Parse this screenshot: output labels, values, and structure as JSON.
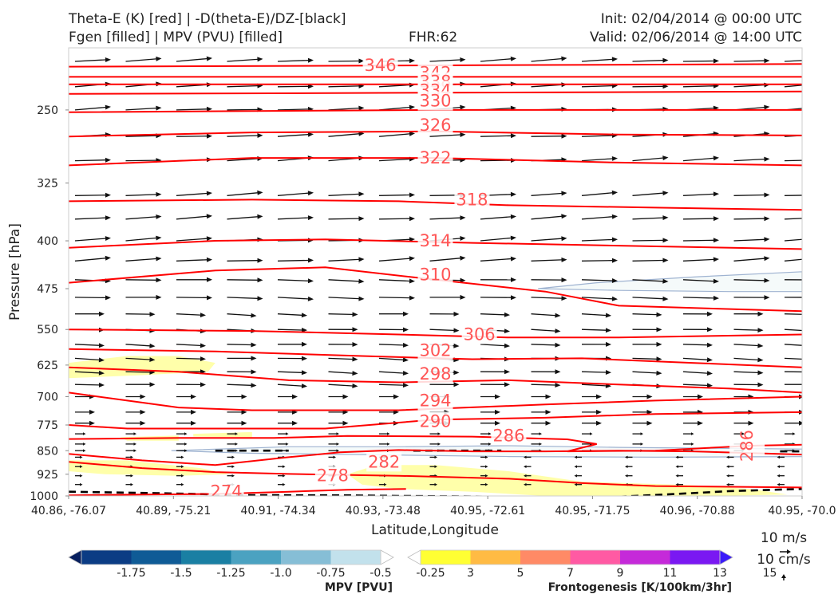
{
  "header": {
    "title_line1": "Theta-E (K) [red] | -D(theta-E)/DZ-[black]",
    "title_line2": "Fgen [filled] | MPV (PVU) [filled]",
    "fhr": "FHR:62",
    "init": "Init: 02/04/2014 @ 00:00 UTC",
    "valid": "Valid: 02/06/2014 @ 14:00 UTC"
  },
  "chart_data": {
    "type": "cross-section",
    "xlabel": "Latitude,Longitude",
    "ylabel": "Pressure [hPa]",
    "x_ticks": [
      "40.86, -76.07",
      "40.89, -75.21",
      "40.91, -74.34",
      "40.93, -73.48",
      "40.95, -72.61",
      "40.95, -71.75",
      "40.96, -70.88",
      "40.95, -70.0"
    ],
    "y_ticks": [
      250,
      325,
      400,
      475,
      550,
      625,
      700,
      775,
      850,
      925,
      1000
    ],
    "ylim": [
      1000,
      200
    ],
    "y_scale": "log",
    "theta_e_contours": [
      {
        "level": "274",
        "label": "274",
        "points": [
          [
            0,
            998
          ],
          [
            10,
            995
          ],
          [
            20,
            993
          ],
          [
            30,
            985
          ],
          [
            38,
            978
          ],
          [
            46,
            975
          ]
        ]
      },
      {
        "level": "278",
        "label": "278",
        "points": [
          [
            0,
            885
          ],
          [
            10,
            905
          ],
          [
            20,
            918
          ],
          [
            30,
            924
          ],
          [
            45,
            930
          ],
          [
            60,
            940
          ],
          [
            70,
            955
          ],
          [
            80,
            965
          ],
          [
            100,
            970
          ]
        ]
      },
      {
        "level": "282",
        "label": "282",
        "points": [
          [
            0,
            860
          ],
          [
            10,
            880
          ],
          [
            20,
            895
          ],
          [
            30,
            870
          ],
          [
            37,
            855
          ],
          [
            45,
            848
          ],
          [
            55,
            852
          ],
          [
            65,
            852
          ],
          [
            75,
            850
          ],
          [
            85,
            852
          ],
          [
            100,
            862
          ]
        ]
      },
      {
        "level": "286",
        "label": "286",
        "points": [
          [
            0,
            815
          ],
          [
            15,
            812
          ],
          [
            28,
            812
          ],
          [
            38,
            806
          ],
          [
            55,
            808
          ],
          [
            68,
            816
          ],
          [
            72,
            830
          ],
          [
            68,
            852
          ],
          [
            80,
            850
          ],
          [
            93,
            835
          ],
          [
            100,
            832
          ]
        ]
      },
      {
        "level": "290",
        "label": "290",
        "points": [
          [
            0,
            775
          ],
          [
            8,
            785
          ],
          [
            20,
            785
          ],
          [
            35,
            785
          ],
          [
            50,
            760
          ],
          [
            65,
            755
          ],
          [
            80,
            745
          ],
          [
            100,
            740
          ]
        ]
      },
      {
        "level": "294",
        "label": "294",
        "points": [
          [
            0,
            690
          ],
          [
            8,
            710
          ],
          [
            15,
            728
          ],
          [
            25,
            735
          ],
          [
            45,
            735
          ],
          [
            65,
            720
          ],
          [
            80,
            710
          ],
          [
            100,
            700
          ]
        ]
      },
      {
        "level": "298",
        "label": "298",
        "points": [
          [
            0,
            630
          ],
          [
            15,
            640
          ],
          [
            30,
            660
          ],
          [
            45,
            665
          ],
          [
            60,
            660
          ],
          [
            75,
            670
          ],
          [
            90,
            680
          ],
          [
            100,
            690
          ]
        ]
      },
      {
        "level": "302",
        "label": "302",
        "points": [
          [
            0,
            590
          ],
          [
            20,
            595
          ],
          [
            40,
            605
          ],
          [
            55,
            612
          ],
          [
            70,
            610
          ],
          [
            85,
            620
          ],
          [
            100,
            630
          ]
        ]
      },
      {
        "level": "306",
        "label": "306",
        "points": [
          [
            0,
            550
          ],
          [
            25,
            553
          ],
          [
            45,
            560
          ],
          [
            60,
            566
          ],
          [
            75,
            566
          ],
          [
            100,
            560
          ]
        ]
      },
      {
        "level": "310",
        "label": "310",
        "points": [
          [
            0,
            465
          ],
          [
            20,
            445
          ],
          [
            35,
            440
          ],
          [
            50,
            460
          ],
          [
            65,
            480
          ],
          [
            75,
            505
          ],
          [
            100,
            515
          ]
        ]
      },
      {
        "level": "314",
        "label": "314",
        "points": [
          [
            0,
            410
          ],
          [
            20,
            400
          ],
          [
            35,
            398
          ],
          [
            55,
            403
          ],
          [
            75,
            407
          ],
          [
            100,
            412
          ]
        ]
      },
      {
        "level": "318",
        "label": "318",
        "points": [
          [
            0,
            347
          ],
          [
            25,
            345
          ],
          [
            45,
            347
          ],
          [
            60,
            352
          ],
          [
            80,
            355
          ],
          [
            100,
            358
          ]
        ]
      },
      {
        "level": "322",
        "label": "322",
        "points": [
          [
            0,
            305
          ],
          [
            25,
            297
          ],
          [
            50,
            297
          ],
          [
            75,
            302
          ],
          [
            100,
            305
          ]
        ]
      },
      {
        "level": "326",
        "label": "326",
        "points": [
          [
            0,
            275
          ],
          [
            25,
            271
          ],
          [
            50,
            270
          ],
          [
            75,
            273
          ],
          [
            100,
            274
          ]
        ]
      },
      {
        "level": "330",
        "label": "330",
        "points": [
          [
            0,
            252
          ],
          [
            50,
            250
          ],
          [
            100,
            250
          ]
        ]
      },
      {
        "level": "334",
        "label": "334",
        "points": [
          [
            0,
            236
          ],
          [
            50,
            235
          ],
          [
            100,
            234
          ]
        ]
      },
      {
        "level": "338",
        "label": "338",
        "points": [
          [
            0,
            228
          ],
          [
            50,
            228
          ],
          [
            100,
            228
          ]
        ]
      },
      {
        "level": "342",
        "label": "342",
        "points": [
          [
            0,
            222
          ],
          [
            50,
            222
          ],
          [
            100,
            222
          ]
        ]
      },
      {
        "level": "346",
        "label": "346",
        "points": [
          [
            0,
            214
          ],
          [
            50,
            213
          ],
          [
            100,
            212
          ]
        ]
      }
    ],
    "contour_labels": [
      {
        "text": "346",
        "x": 42.5,
        "y": 213
      },
      {
        "text": "342",
        "x": 50,
        "y": 219
      },
      {
        "text": "338",
        "x": 50,
        "y": 226
      },
      {
        "text": "334",
        "x": 50,
        "y": 233
      },
      {
        "text": "330",
        "x": 50,
        "y": 242
      },
      {
        "text": "326",
        "x": 50,
        "y": 264
      },
      {
        "text": "322",
        "x": 50,
        "y": 297
      },
      {
        "text": "318",
        "x": 55,
        "y": 345
      },
      {
        "text": "314",
        "x": 50,
        "y": 400
      },
      {
        "text": "310",
        "x": 50,
        "y": 452
      },
      {
        "text": "306",
        "x": 56,
        "y": 560
      },
      {
        "text": "302",
        "x": 50,
        "y": 593
      },
      {
        "text": "298",
        "x": 50,
        "y": 645
      },
      {
        "text": "294",
        "x": 50,
        "y": 710
      },
      {
        "text": "290",
        "x": 50,
        "y": 765
      },
      {
        "text": "286",
        "x": 60,
        "y": 805
      },
      {
        "text": "286",
        "x": 92.5,
        "y": 835,
        "rotate": -90
      },
      {
        "text": "282",
        "x": 43,
        "y": 885
      },
      {
        "text": "278",
        "x": 36,
        "y": 930
      },
      {
        "text": "274",
        "x": 21.5,
        "y": 985
      }
    ],
    "mpv_negative_regions": [
      {
        "value": "-0.25",
        "color": "#f5fafa",
        "points": [
          [
            14,
            850
          ],
          [
            30,
            838
          ],
          [
            45,
            838
          ],
          [
            60,
            835
          ],
          [
            75,
            840
          ],
          [
            100,
            845
          ],
          [
            100,
            868
          ],
          [
            80,
            870
          ],
          [
            60,
            868
          ],
          [
            40,
            862
          ],
          [
            25,
            858
          ]
        ]
      },
      {
        "value": "-0.25",
        "color": "#f5fafa",
        "points": [
          [
            64,
            475
          ],
          [
            72,
            465
          ],
          [
            86,
            455
          ],
          [
            100,
            447
          ],
          [
            100,
            480
          ],
          [
            90,
            480
          ],
          [
            75,
            478
          ]
        ]
      }
    ],
    "fgen_regions": [
      {
        "value": "3",
        "color": "#ffffaa",
        "points": [
          [
            0,
            620
          ],
          [
            8,
            605
          ],
          [
            15,
            605
          ],
          [
            20,
            620
          ],
          [
            19,
            640
          ],
          [
            10,
            648
          ],
          [
            0,
            655
          ]
        ]
      },
      {
        "value": "3",
        "color": "#ffffaa",
        "points": [
          [
            0,
            880
          ],
          [
            8,
            880
          ],
          [
            18,
            905
          ],
          [
            22,
            925
          ],
          [
            15,
            930
          ],
          [
            5,
            925
          ],
          [
            0,
            915
          ]
        ]
      },
      {
        "value": "3",
        "color": "#ffffaa",
        "points": [
          [
            7,
            810
          ],
          [
            15,
            805
          ],
          [
            15,
            820
          ],
          [
            8,
            820
          ]
        ]
      },
      {
        "value": "3",
        "color": "#ffffaa",
        "points": [
          [
            17,
            800
          ],
          [
            25,
            795
          ],
          [
            25,
            810
          ],
          [
            17,
            808
          ]
        ]
      },
      {
        "value": "3",
        "color": "#ffffaa",
        "points": [
          [
            38,
            925
          ],
          [
            42,
            895
          ],
          [
            50,
            895
          ],
          [
            60,
            915
          ],
          [
            70,
            950
          ],
          [
            85,
            962
          ],
          [
            93,
            975
          ],
          [
            98,
            995
          ],
          [
            88,
            1000
          ],
          [
            65,
            1000
          ],
          [
            55,
            985
          ],
          [
            45,
            975
          ],
          [
            40,
            960
          ]
        ]
      }
    ],
    "dtheta_dz_dashed": [
      {
        "points": [
          [
            0,
            985
          ],
          [
            12,
            990
          ],
          [
            25,
            997
          ],
          [
            38,
            998
          ],
          [
            45,
            1000
          ],
          [
            60,
            1003
          ],
          [
            75,
            1003
          ],
          [
            85,
            990
          ],
          [
            90,
            983
          ],
          [
            100,
            975
          ]
        ]
      },
      {
        "points": [
          [
            20,
            850
          ],
          [
            30,
            850
          ]
        ]
      },
      {
        "points": [
          [
            47,
            850
          ],
          [
            59,
            850
          ]
        ]
      },
      {
        "points": [
          [
            97,
            852
          ],
          [
            100,
            852
          ]
        ]
      }
    ],
    "wind_field": {
      "u_scale": "10 m/s",
      "w_scale": "10 cm/s"
    },
    "colorbars": {
      "mpv": {
        "title": "MPV [PVU]",
        "ticks": [
          "-1.75",
          "-1.5",
          "-1.25",
          "-1.0",
          "-0.75",
          "-0.5",
          "-0.25"
        ],
        "colors": [
          "#08205f",
          "#0b3c84",
          "#0f5b96",
          "#1a7fa3",
          "#4ba2c1",
          "#86bed6",
          "#c2e1ec",
          "#ffffff"
        ]
      },
      "fgen": {
        "title": "Frontogenesis [K/100km/3hr]",
        "ticks": [
          "3",
          "5",
          "7",
          "9",
          "11",
          "13",
          "15"
        ],
        "colors": [
          "#ffffff",
          "#ffff33",
          "#ffbb44",
          "#ff8a66",
          "#ff5aa3",
          "#c52ad9",
          "#7a18f2",
          "#3b1cf9"
        ]
      }
    },
    "grid": false,
    "legend": "bottom"
  },
  "quiver_key": {
    "horizontal": "10 m/s",
    "vertical": "10 cm/s"
  }
}
